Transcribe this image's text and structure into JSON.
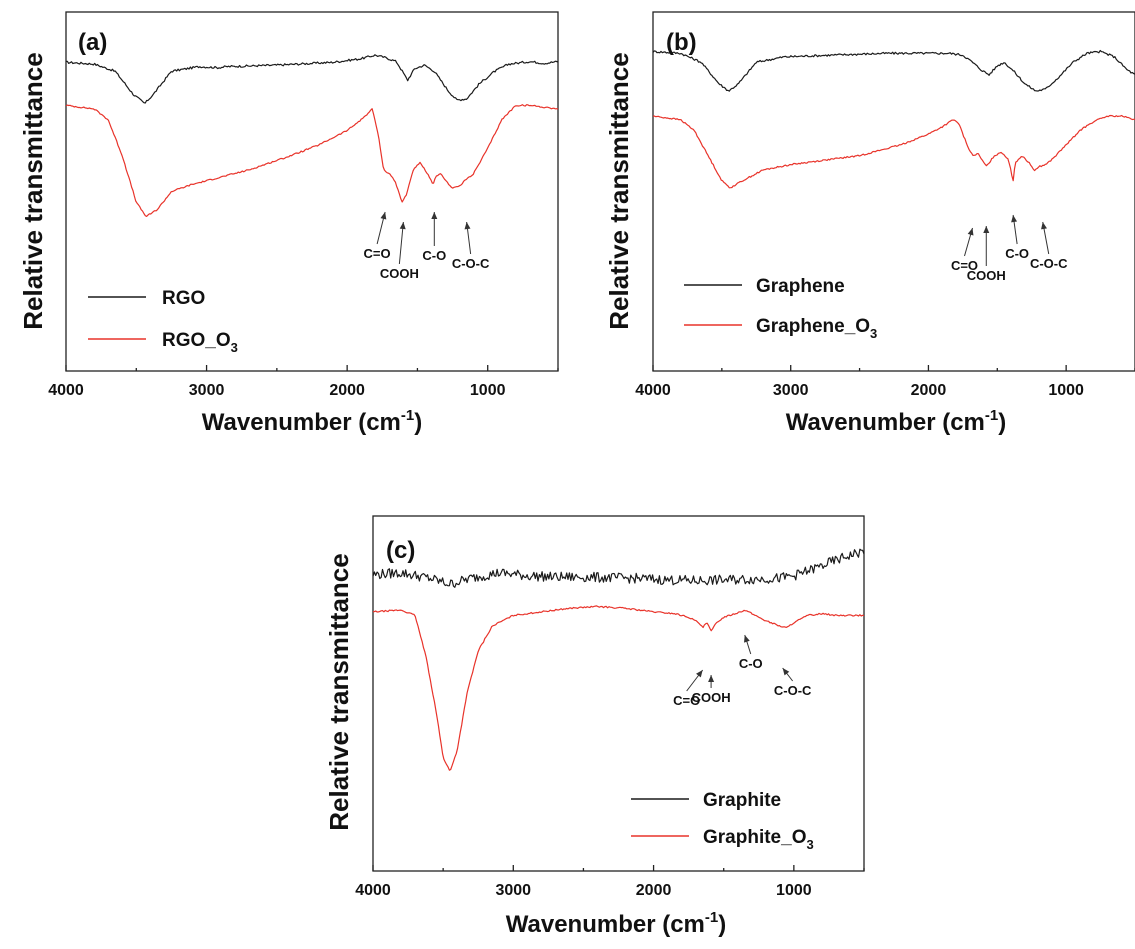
{
  "chart_data": [
    {
      "panel_label": "(a)",
      "type": "line",
      "xlabel": "Wavenumber (cm",
      "xlabel_sup": "-1",
      "xlabel_end": ")",
      "ylabel": "Relative transmittance",
      "xlim": [
        4000,
        500
      ],
      "ylim": [
        0,
        1
      ],
      "x_ticks": [
        "4000",
        "3000",
        "2000",
        "1000"
      ],
      "legend_position": "bottom-left",
      "series": [
        {
          "name": "RGO",
          "name_sub": "",
          "color": "#1a1a1a",
          "noise": 0.003,
          "points": [
            [
              4000,
              0.86
            ],
            [
              3800,
              0.855
            ],
            [
              3650,
              0.835
            ],
            [
              3520,
              0.77
            ],
            [
              3440,
              0.745
            ],
            [
              3380,
              0.77
            ],
            [
              3250,
              0.835
            ],
            [
              3050,
              0.848
            ],
            [
              2920,
              0.845
            ],
            [
              2850,
              0.848
            ],
            [
              2500,
              0.852
            ],
            [
              2100,
              0.86
            ],
            [
              1900,
              0.87
            ],
            [
              1800,
              0.88
            ],
            [
              1720,
              0.872
            ],
            [
              1650,
              0.862
            ],
            [
              1600,
              0.83
            ],
            [
              1570,
              0.81
            ],
            [
              1520,
              0.842
            ],
            [
              1450,
              0.852
            ],
            [
              1380,
              0.835
            ],
            [
              1280,
              0.78
            ],
            [
              1220,
              0.755
            ],
            [
              1150,
              0.758
            ],
            [
              1060,
              0.8
            ],
            [
              950,
              0.835
            ],
            [
              850,
              0.855
            ],
            [
              700,
              0.862
            ],
            [
              600,
              0.857
            ],
            [
              500,
              0.862
            ]
          ]
        },
        {
          "name": "RGO_O",
          "name_sub": "3",
          "color": "#e8332a",
          "noise": 0.002,
          "points": [
            [
              4000,
              0.74
            ],
            [
              3800,
              0.73
            ],
            [
              3700,
              0.7
            ],
            [
              3600,
              0.6
            ],
            [
              3500,
              0.47
            ],
            [
              3430,
              0.43
            ],
            [
              3350,
              0.45
            ],
            [
              3250,
              0.5
            ],
            [
              3100,
              0.52
            ],
            [
              2950,
              0.535
            ],
            [
              2700,
              0.56
            ],
            [
              2400,
              0.6
            ],
            [
              2200,
              0.63
            ],
            [
              2000,
              0.67
            ],
            [
              1900,
              0.7
            ],
            [
              1820,
              0.73
            ],
            [
              1780,
              0.66
            ],
            [
              1740,
              0.56
            ],
            [
              1700,
              0.55
            ],
            [
              1660,
              0.53
            ],
            [
              1610,
              0.47
            ],
            [
              1580,
              0.49
            ],
            [
              1530,
              0.56
            ],
            [
              1480,
              0.58
            ],
            [
              1430,
              0.55
            ],
            [
              1390,
              0.52
            ],
            [
              1370,
              0.54
            ],
            [
              1330,
              0.55
            ],
            [
              1300,
              0.53
            ],
            [
              1250,
              0.51
            ],
            [
              1200,
              0.515
            ],
            [
              1150,
              0.535
            ],
            [
              1100,
              0.55
            ],
            [
              1000,
              0.62
            ],
            [
              900,
              0.7
            ],
            [
              800,
              0.74
            ],
            [
              700,
              0.74
            ],
            [
              600,
              0.735
            ],
            [
              500,
              0.73
            ]
          ]
        }
      ],
      "annotations": [
        {
          "text": "C=O",
          "x": 1730
        },
        {
          "text": "COOH",
          "x": 1600
        },
        {
          "text": "C-O",
          "x": 1380
        },
        {
          "text": "C-O-C",
          "x": 1150
        }
      ]
    },
    {
      "panel_label": "(b)",
      "type": "line",
      "xlabel": "Wavenumber (cm",
      "xlabel_sup": "-1",
      "xlabel_end": ")",
      "ylabel": "Relative transmittance",
      "xlim": [
        4000,
        500
      ],
      "ylim": [
        0,
        1
      ],
      "x_ticks": [
        "4000",
        "3000",
        "2000",
        "1000"
      ],
      "legend_position": "bottom-left",
      "series": [
        {
          "name": "Graphene",
          "name_sub": "",
          "color": "#1a1a1a",
          "noise": 0.003,
          "points": [
            [
              4000,
              0.89
            ],
            [
              3800,
              0.885
            ],
            [
              3650,
              0.86
            ],
            [
              3520,
              0.8
            ],
            [
              3450,
              0.78
            ],
            [
              3380,
              0.8
            ],
            [
              3250,
              0.86
            ],
            [
              3050,
              0.875
            ],
            [
              2700,
              0.88
            ],
            [
              2300,
              0.885
            ],
            [
              2000,
              0.885
            ],
            [
              1850,
              0.885
            ],
            [
              1750,
              0.88
            ],
            [
              1680,
              0.86
            ],
            [
              1620,
              0.84
            ],
            [
              1560,
              0.825
            ],
            [
              1500,
              0.85
            ],
            [
              1450,
              0.86
            ],
            [
              1380,
              0.835
            ],
            [
              1300,
              0.8
            ],
            [
              1220,
              0.78
            ],
            [
              1150,
              0.785
            ],
            [
              1050,
              0.82
            ],
            [
              950,
              0.86
            ],
            [
              850,
              0.885
            ],
            [
              750,
              0.89
            ],
            [
              650,
              0.875
            ],
            [
              560,
              0.84
            ],
            [
              500,
              0.825
            ]
          ]
        },
        {
          "name": "Graphene_O",
          "name_sub": "3",
          "color": "#e8332a",
          "noise": 0.002,
          "points": [
            [
              4000,
              0.71
            ],
            [
              3800,
              0.7
            ],
            [
              3700,
              0.67
            ],
            [
              3600,
              0.6
            ],
            [
              3500,
              0.53
            ],
            [
              3440,
              0.51
            ],
            [
              3350,
              0.53
            ],
            [
              3200,
              0.56
            ],
            [
              3000,
              0.575
            ],
            [
              2700,
              0.59
            ],
            [
              2500,
              0.6
            ],
            [
              2200,
              0.63
            ],
            [
              2000,
              0.66
            ],
            [
              1900,
              0.68
            ],
            [
              1820,
              0.7
            ],
            [
              1780,
              0.69
            ],
            [
              1720,
              0.63
            ],
            [
              1680,
              0.6
            ],
            [
              1640,
              0.605
            ],
            [
              1580,
              0.57
            ],
            [
              1520,
              0.6
            ],
            [
              1470,
              0.61
            ],
            [
              1420,
              0.59
            ],
            [
              1385,
              0.53
            ],
            [
              1370,
              0.58
            ],
            [
              1320,
              0.6
            ],
            [
              1270,
              0.58
            ],
            [
              1230,
              0.56
            ],
            [
              1190,
              0.57
            ],
            [
              1150,
              0.575
            ],
            [
              1100,
              0.59
            ],
            [
              1000,
              0.63
            ],
            [
              900,
              0.67
            ],
            [
              800,
              0.695
            ],
            [
              700,
              0.71
            ],
            [
              600,
              0.71
            ],
            [
              500,
              0.7
            ]
          ]
        }
      ],
      "annotations": [
        {
          "text": "C=O",
          "x": 1680
        },
        {
          "text": "COOH",
          "x": 1580
        },
        {
          "text": "C-O",
          "x": 1385
        },
        {
          "text": "C-O-C",
          "x": 1170
        }
      ]
    },
    {
      "panel_label": "(c)",
      "type": "line",
      "xlabel": "Wavenumber (cm",
      "xlabel_sup": "-1",
      "xlabel_end": ")",
      "ylabel": "Relative transmittance",
      "xlim": [
        4000,
        500
      ],
      "ylim": [
        0,
        1
      ],
      "x_ticks": [
        "4000",
        "3000",
        "2000",
        "1000"
      ],
      "legend_position": "bottom-right",
      "series": [
        {
          "name": "Graphite",
          "name_sub": "",
          "color": "#1a1a1a",
          "noise": 0.014,
          "points": [
            [
              4000,
              0.835
            ],
            [
              3800,
              0.84
            ],
            [
              3600,
              0.825
            ],
            [
              3450,
              0.808
            ],
            [
              3300,
              0.825
            ],
            [
              3100,
              0.84
            ],
            [
              2900,
              0.832
            ],
            [
              2700,
              0.828
            ],
            [
              2500,
              0.828
            ],
            [
              2300,
              0.826
            ],
            [
              2100,
              0.824
            ],
            [
              1900,
              0.82
            ],
            [
              1700,
              0.818
            ],
            [
              1500,
              0.82
            ],
            [
              1300,
              0.822
            ],
            [
              1100,
              0.825
            ],
            [
              1000,
              0.832
            ],
            [
              900,
              0.845
            ],
            [
              800,
              0.86
            ],
            [
              700,
              0.875
            ],
            [
              600,
              0.89
            ],
            [
              500,
              0.9
            ]
          ]
        },
        {
          "name": "Graphite_O",
          "name_sub": "3",
          "color": "#e8332a",
          "noise": 0.002,
          "points": [
            [
              4000,
              0.73
            ],
            [
              3800,
              0.735
            ],
            [
              3700,
              0.72
            ],
            [
              3620,
              0.6
            ],
            [
              3550,
              0.45
            ],
            [
              3500,
              0.32
            ],
            [
              3450,
              0.28
            ],
            [
              3400,
              0.34
            ],
            [
              3330,
              0.5
            ],
            [
              3250,
              0.62
            ],
            [
              3150,
              0.69
            ],
            [
              3000,
              0.72
            ],
            [
              2800,
              0.73
            ],
            [
              2600,
              0.74
            ],
            [
              2400,
              0.745
            ],
            [
              2200,
              0.74
            ],
            [
              2000,
              0.73
            ],
            [
              1850,
              0.725
            ],
            [
              1750,
              0.715
            ],
            [
              1680,
              0.7
            ],
            [
              1650,
              0.685
            ],
            [
              1620,
              0.7
            ],
            [
              1590,
              0.675
            ],
            [
              1550,
              0.7
            ],
            [
              1500,
              0.715
            ],
            [
              1420,
              0.725
            ],
            [
              1350,
              0.735
            ],
            [
              1300,
              0.725
            ],
            [
              1200,
              0.705
            ],
            [
              1100,
              0.69
            ],
            [
              1050,
              0.685
            ],
            [
              1000,
              0.7
            ],
            [
              900,
              0.72
            ],
            [
              800,
              0.725
            ],
            [
              700,
              0.72
            ],
            [
              600,
              0.72
            ],
            [
              500,
              0.72
            ]
          ]
        }
      ],
      "annotations": [
        {
          "text": "C=O",
          "x": 1650
        },
        {
          "text": "COOH",
          "x": 1590
        },
        {
          "text": "C-O",
          "x": 1350
        },
        {
          "text": "C-O-C",
          "x": 1080
        }
      ]
    }
  ]
}
